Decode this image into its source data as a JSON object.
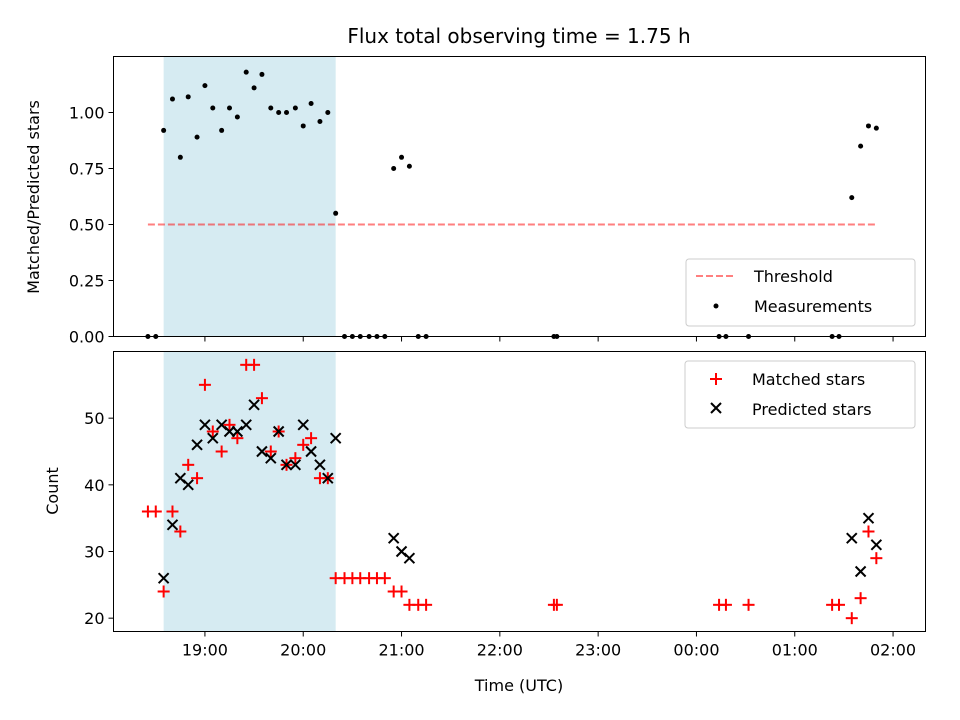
{
  "chart_data": [
    {
      "type": "scatter",
      "title": "Flux total observing time = 1.75 h",
      "xlabel": "",
      "ylabel": "Matched/Predicted stars",
      "ylim": [
        0,
        1.25
      ],
      "xlim": [
        18.07,
        26.33
      ],
      "yticks": [
        0.0,
        0.25,
        0.5,
        0.75,
        1.0
      ],
      "ytick_labels": [
        "0.00",
        "0.25",
        "0.50",
        "0.75",
        "1.00"
      ],
      "shaded_interval": [
        18.58,
        20.33
      ],
      "shaded_color": "#add8e6",
      "threshold": {
        "label": "Threshold",
        "value": 0.5,
        "x_range": [
          18.42,
          25.83
        ],
        "color": "#ff0000"
      },
      "series": [
        {
          "name": "Measurements",
          "color": "#000000",
          "x": [
            18.42,
            18.5,
            18.58,
            18.67,
            18.75,
            18.83,
            18.92,
            19.0,
            19.08,
            19.17,
            19.25,
            19.33,
            19.42,
            19.5,
            19.58,
            19.67,
            19.75,
            19.83,
            19.92,
            20.0,
            20.08,
            20.17,
            20.25,
            20.33,
            20.42,
            20.5,
            20.58,
            20.67,
            20.75,
            20.83,
            20.92,
            21.0,
            21.08,
            21.17,
            21.25,
            22.55,
            22.58,
            24.23,
            24.3,
            24.53,
            25.38,
            25.45,
            25.58,
            25.67,
            25.75,
            25.83
          ],
          "y": [
            0.0,
            0.0,
            0.92,
            1.06,
            0.8,
            1.07,
            0.89,
            1.12,
            1.02,
            0.92,
            1.02,
            0.98,
            1.18,
            1.11,
            1.17,
            1.02,
            1.0,
            1.0,
            1.02,
            0.94,
            1.04,
            0.96,
            1.0,
            0.55,
            0.0,
            0.0,
            0.0,
            0.0,
            0.0,
            0.0,
            0.75,
            0.8,
            0.76,
            0.0,
            0.0,
            0.0,
            0.0,
            0.0,
            0.0,
            0.0,
            0.0,
            0.0,
            0.62,
            0.85,
            0.94,
            0.93
          ]
        }
      ],
      "legend": {
        "position": "lower right",
        "entries": [
          "Threshold",
          "Measurements"
        ]
      }
    },
    {
      "type": "scatter",
      "title": "",
      "xlabel": "Time (UTC)",
      "ylabel": "Count",
      "ylim": [
        18,
        60
      ],
      "xlim": [
        18.07,
        26.33
      ],
      "yticks": [
        20,
        30,
        40,
        50
      ],
      "ytick_labels": [
        "20",
        "30",
        "40",
        "50"
      ],
      "xticks": [
        19,
        20,
        21,
        22,
        23,
        24,
        25,
        26
      ],
      "xtick_labels": [
        "19:00",
        "20:00",
        "21:00",
        "22:00",
        "23:00",
        "00:00",
        "01:00",
        "02:00"
      ],
      "shaded_interval": [
        18.58,
        20.33
      ],
      "shaded_color": "#add8e6",
      "series": [
        {
          "name": "Matched stars",
          "marker": "+",
          "color": "#ff0000",
          "x": [
            18.42,
            18.5,
            18.58,
            18.67,
            18.75,
            18.83,
            18.92,
            19.0,
            19.08,
            19.17,
            19.25,
            19.33,
            19.42,
            19.5,
            19.58,
            19.67,
            19.75,
            19.83,
            19.92,
            20.0,
            20.08,
            20.17,
            20.25,
            20.33,
            20.42,
            20.5,
            20.58,
            20.67,
            20.75,
            20.83,
            20.92,
            21.0,
            21.08,
            21.17,
            21.25,
            22.55,
            22.58,
            24.23,
            24.3,
            24.53,
            25.38,
            25.45,
            25.58,
            25.67,
            25.75,
            25.83
          ],
          "y": [
            36,
            36,
            24,
            36,
            33,
            43,
            41,
            55,
            48,
            45,
            49,
            47,
            58,
            58,
            53,
            45,
            48,
            43,
            44,
            46,
            47,
            41,
            41,
            26,
            26,
            26,
            26,
            26,
            26,
            26,
            24,
            24,
            22,
            22,
            22,
            22,
            22,
            22,
            22,
            22,
            22,
            22,
            20,
            23,
            33,
            29
          ]
        },
        {
          "name": "Predicted stars",
          "marker": "x",
          "color": "#000000",
          "x": [
            18.58,
            18.67,
            18.75,
            18.83,
            18.92,
            19.0,
            19.08,
            19.17,
            19.25,
            19.33,
            19.42,
            19.5,
            19.58,
            19.67,
            19.75,
            19.83,
            19.92,
            20.0,
            20.08,
            20.17,
            20.25,
            20.33,
            20.92,
            21.0,
            21.08,
            25.58,
            25.67,
            25.75,
            25.83
          ],
          "y": [
            26,
            34,
            41,
            40,
            46,
            49,
            47,
            49,
            48,
            48,
            49,
            52,
            45,
            44,
            48,
            43,
            43,
            49,
            45,
            43,
            41,
            47,
            32,
            30,
            29,
            32,
            27,
            35,
            31
          ]
        }
      ],
      "legend": {
        "position": "upper right",
        "entries": [
          "Matched stars",
          "Predicted stars"
        ]
      }
    }
  ]
}
